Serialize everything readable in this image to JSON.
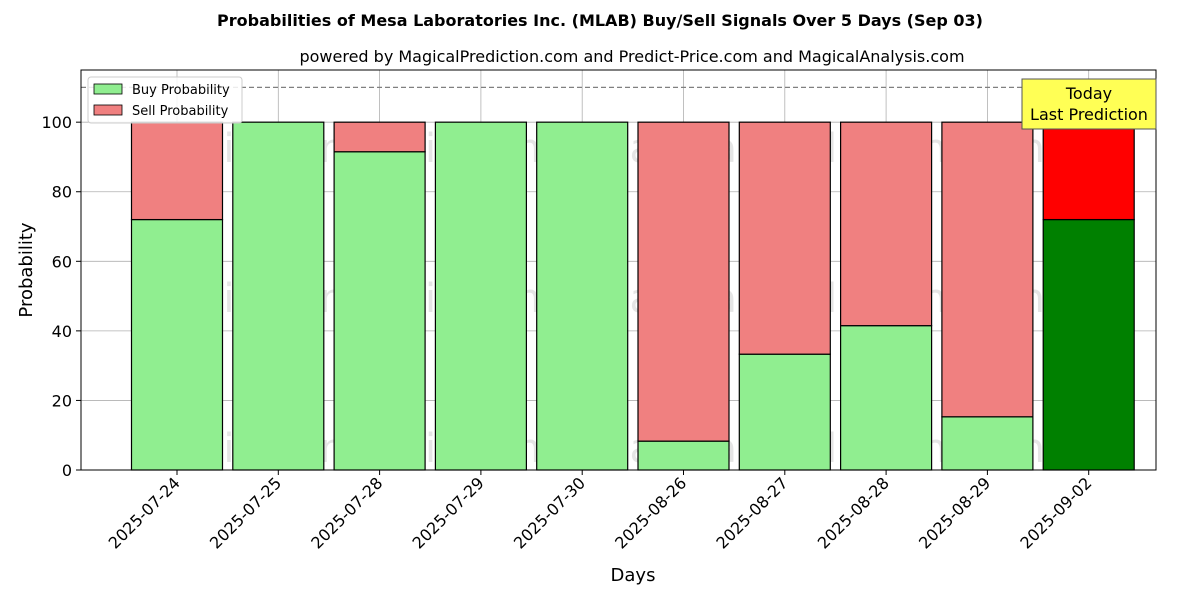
{
  "chart_data": {
    "type": "bar",
    "stacked": true,
    "title": "Probabilities of Mesa Laboratories Inc. (MLAB) Buy/Sell Signals Over 5 Days (Sep 03)",
    "subtitle": "powered by MagicalPrediction.com and Predict-Price.com and MagicalAnalysis.com",
    "xlabel": "Days",
    "ylabel": "Probability",
    "ylim": [
      0,
      115
    ],
    "yticks": [
      "0",
      "20",
      "40",
      "60",
      "80",
      "100"
    ],
    "grid": true,
    "legend_position": "top-left",
    "categories": [
      "2025-07-24",
      "2025-07-25",
      "2025-07-28",
      "2025-07-29",
      "2025-07-30",
      "2025-08-26",
      "2025-08-27",
      "2025-08-28",
      "2025-08-29",
      "2025-09-02"
    ],
    "series": [
      {
        "name": "Buy Probability",
        "color": "#90EE90",
        "highlight_color": "#008000",
        "values": [
          72,
          100,
          91.5,
          100,
          100,
          8.3,
          33.3,
          41.5,
          15.3,
          72
        ]
      },
      {
        "name": "Sell Probability",
        "color": "#F08080",
        "highlight_color": "#FF0000",
        "values": [
          28,
          0,
          8.5,
          0,
          0,
          91.7,
          66.7,
          58.5,
          84.7,
          28
        ]
      }
    ],
    "highlight_index": 9,
    "reference_line": {
      "y": 110,
      "style": "dashed",
      "color": "#808080"
    },
    "annotation": {
      "lines": [
        "Today",
        "Last Prediction"
      ],
      "background": "#FFFF55",
      "position": "top-right"
    },
    "watermarks": [
      "MagicalAnalysis.com",
      "MagicalPrediction.com",
      "MagicalAnalysis.com",
      "MagicalPrediction.com",
      "MagicalAnalysis.com",
      "MagicalPrediction.com"
    ]
  }
}
